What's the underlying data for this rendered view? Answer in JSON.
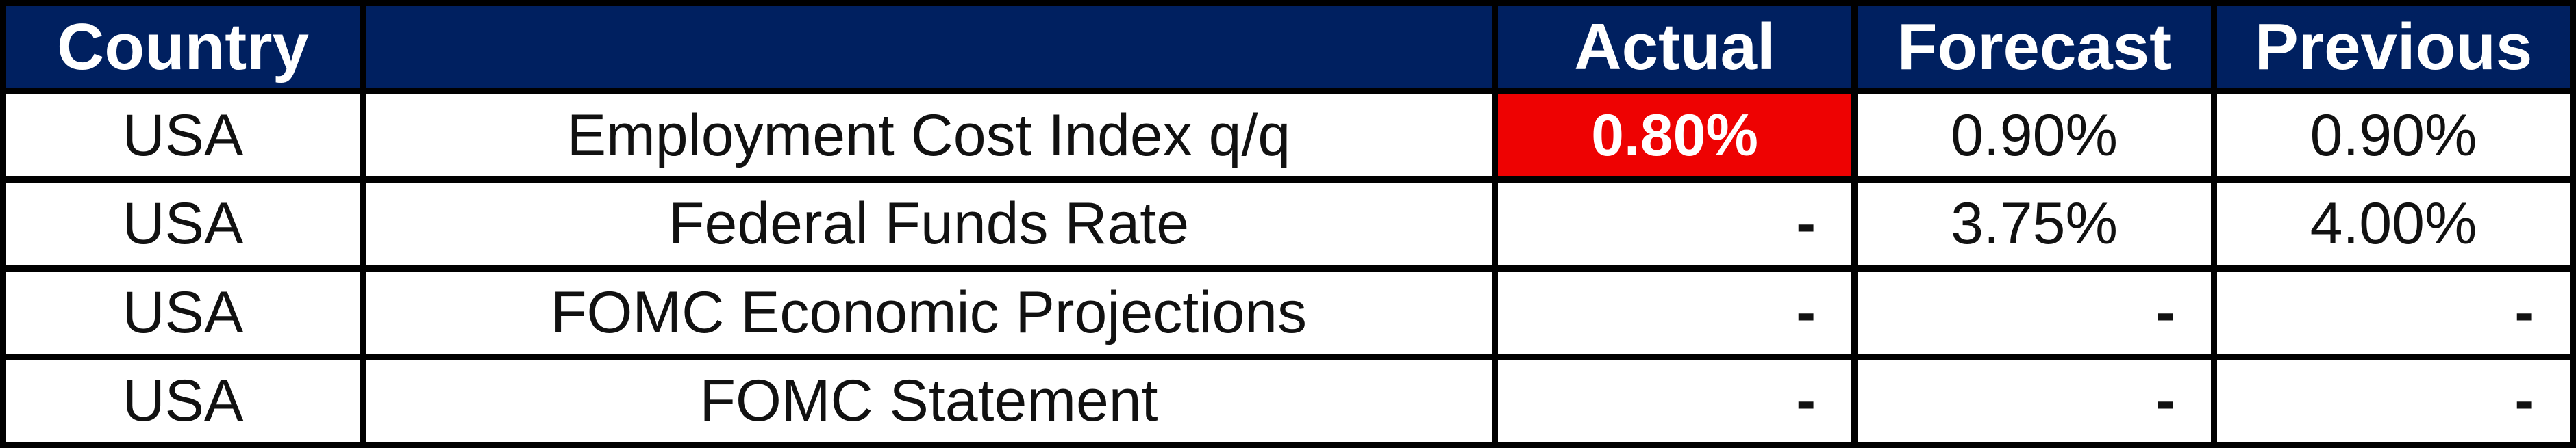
{
  "table": {
    "headers": {
      "country": "Country",
      "event": "",
      "actual": "Actual",
      "forecast": "Forecast",
      "previous": "Previous"
    },
    "rows": [
      {
        "country": "USA",
        "event": "Employment Cost Index q/q",
        "actual": "0.80%",
        "forecast": "0.90%",
        "previous": "0.90%",
        "actual_highlighted": true
      },
      {
        "country": "USA",
        "event": "Federal Funds Rate",
        "actual": "-",
        "forecast": "3.75%",
        "previous": "4.00%",
        "actual_highlighted": false
      },
      {
        "country": "USA",
        "event": "FOMC Economic Projections",
        "actual": "-",
        "forecast": "-",
        "previous": "-",
        "actual_highlighted": false
      },
      {
        "country": "USA",
        "event": "FOMC Statement",
        "actual": "-",
        "forecast": "-",
        "previous": "-",
        "actual_highlighted": false
      }
    ],
    "colors": {
      "header_bg": "#002060",
      "header_text": "#ffffff",
      "highlight_bg": "#ee0202",
      "highlight_text": "#ffffff",
      "border": "#000000",
      "cell_bg": "#ffffff",
      "text": "#111111"
    }
  },
  "chart_data": {
    "type": "table",
    "title": "",
    "columns": [
      "Country",
      "",
      "Actual",
      "Forecast",
      "Previous"
    ],
    "rows": [
      [
        "USA",
        "Employment Cost Index q/q",
        "0.80%",
        "0.90%",
        "0.90%"
      ],
      [
        "USA",
        "Federal Funds Rate",
        "-",
        "3.75%",
        "4.00%"
      ],
      [
        "USA",
        "FOMC Economic Projections",
        "-",
        "-",
        "-"
      ],
      [
        "USA",
        "FOMC Statement",
        "-",
        "-",
        "-"
      ]
    ],
    "highlights": [
      {
        "row": 0,
        "column": "Actual",
        "bg": "#ee0202",
        "text_color": "#ffffff",
        "meaning": "actual below forecast"
      }
    ],
    "layout": {
      "header_bg": "#002060",
      "grid": "thick black borders between all cells",
      "empty_actuals_alignment": "right"
    }
  }
}
